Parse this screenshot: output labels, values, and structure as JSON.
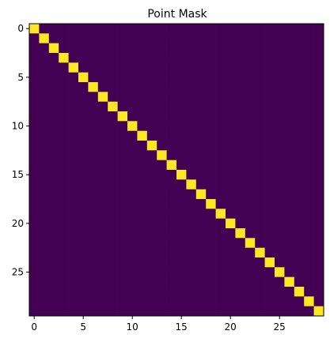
{
  "chart_data": {
    "type": "heatmap",
    "title": "Point Mask",
    "xlabel": "",
    "ylabel": "",
    "size": 30,
    "x_ticks": [
      0,
      5,
      10,
      15,
      20,
      25
    ],
    "y_ticks": [
      0,
      5,
      10,
      15,
      20,
      25
    ],
    "xlim": [
      -0.5,
      29.5
    ],
    "ylim": [
      29.5,
      -0.5
    ],
    "grid": false,
    "pattern": "identity matrix: 1 on diagonal, 0 elsewhere",
    "values_on": 1,
    "values_off": 0,
    "colors": {
      "on": "#fde725",
      "off": "#440154"
    }
  }
}
